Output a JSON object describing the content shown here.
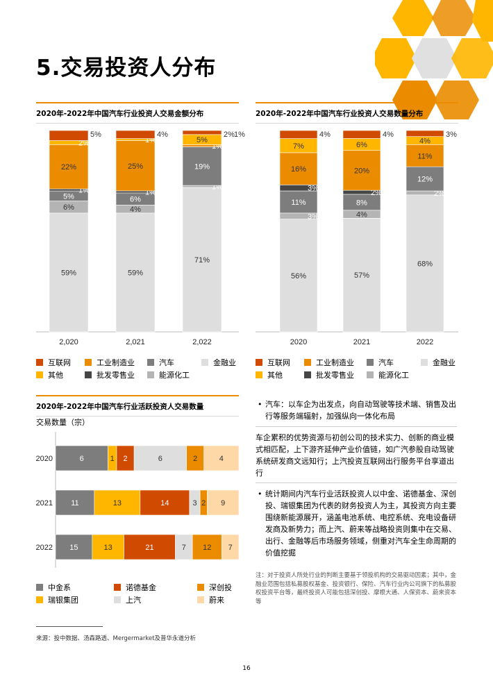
{
  "page": {
    "title": "5.交易投资人分布",
    "page_number": "16",
    "source": "来源：投中数据、汤森路透、Mergermarket及普华永道分析",
    "note": "注：对于投资人所处行业的判断主要基于领投机构的交易驱动因素；其中，金融业范围包括私募股权基金、投资银行、保险、汽车行业内公司旗下的私募股权投资平台等，最终投资人可能包括深创投、摩根大通、人保资本、蔚来资本等"
  },
  "text_panel": {
    "bullet1": "汽车：以车企为出发点，向自动驾驶等技术端、销售及出行等服务端辐射，加强纵向一体化布局",
    "para1": "车企累积的优势资源与初创公司的技术实力、创新的商业模式相匹配，上下游齐延伸产业价值链，如广汽参股自动驾驶系统研发商文远知行；上汽投资互联网出行服务平台享道出行",
    "bullet2": "统计期间内汽车行业活跃投资人以中金、诺德基金、深创投、瑞银集团为代表的财务投资人为主，其投资方向主要围绕新能源展开，涵盖电池系统、电控系统、充电设备研发商及新势力；而上汽、蔚来等战略投资则集中在交易、出行、金融等后市场服务领域，侧重对汽车全生命周期的价值挖掘",
    "bullet_symbol": "•"
  },
  "legend_sector": [
    {
      "name": "互联网",
      "color": "#d04a02"
    },
    {
      "name": "工业制造业",
      "color": "#eb8c00"
    },
    {
      "name": "汽车",
      "color": "#7d7d7d"
    },
    {
      "name": "金融业",
      "color": "#dedede"
    },
    {
      "name": "其他",
      "color": "#ffb600"
    },
    {
      "name": "批发零售业",
      "color": "#464646"
    },
    {
      "name": "能源化工",
      "color": "#b4b4b4"
    }
  ],
  "legend_investor": [
    {
      "name": "中金系",
      "color": "#7d7d7d"
    },
    {
      "name": "诺德基金",
      "color": "#d04a02"
    },
    {
      "name": "深创投",
      "color": "#eb8c00"
    },
    {
      "name": "瑞银集团",
      "color": "#ffb600"
    },
    {
      "name": "上汽",
      "color": "#dedede"
    },
    {
      "name": "蔚来",
      "color": "#ffd8a8"
    }
  ],
  "chart_data": [
    {
      "type": "bar",
      "stacked": true,
      "title": "2020年-2022年中国汽车行业投资人交易金额分布",
      "categories": [
        "2,020",
        "2,021",
        "2,022"
      ],
      "unit": "%",
      "ylim": [
        0,
        100
      ],
      "series": [
        {
          "name": "金融业",
          "color": "#dedede",
          "values": [
            59,
            59,
            71
          ],
          "label_color": "#333333"
        },
        {
          "name": "能源化工",
          "color": "#b4b4b4",
          "values": [
            6,
            4,
            1
          ],
          "label_color": "#333333"
        },
        {
          "name": "汽车",
          "color": "#7d7d7d",
          "values": [
            5,
            6,
            19
          ],
          "label_color": "#ffffff"
        },
        {
          "name": "批发零售业",
          "color": "#464646",
          "values": [
            1,
            1,
            0
          ],
          "label_color": "#ffffff"
        },
        {
          "name": "工业制造业",
          "color": "#eb8c00",
          "values": [
            22,
            25,
            1
          ],
          "label_color": "#333333"
        },
        {
          "name": "其他",
          "color": "#ffb600",
          "values": [
            2,
            1,
            5
          ],
          "label_color": "#333333"
        },
        {
          "name": "互联网",
          "color": "#d04a02",
          "values": [
            5,
            4,
            2
          ],
          "label_color": "#333333"
        }
      ],
      "extra_labels": [
        {
          "bar": 2,
          "text": "1%"
        }
      ]
    },
    {
      "type": "bar",
      "stacked": true,
      "title": "2020年-2022年中国汽车行业投资人交易数量分布",
      "categories": [
        "2020",
        "2021",
        "2022"
      ],
      "unit": "%",
      "ylim": [
        0,
        100
      ],
      "series": [
        {
          "name": "金融业",
          "color": "#dedede",
          "values": [
            56,
            57,
            68
          ],
          "label_color": "#333333"
        },
        {
          "name": "能源化工",
          "color": "#b4b4b4",
          "values": [
            3,
            4,
            2
          ],
          "label_color": "#333333"
        },
        {
          "name": "汽车",
          "color": "#7d7d7d",
          "values": [
            11,
            8,
            12
          ],
          "label_color": "#ffffff"
        },
        {
          "name": "批发零售业",
          "color": "#464646",
          "values": [
            3,
            2,
            0
          ],
          "label_color": "#ffffff"
        },
        {
          "name": "工业制造业",
          "color": "#eb8c00",
          "values": [
            16,
            20,
            11
          ],
          "label_color": "#333333"
        },
        {
          "name": "其他",
          "color": "#ffb600",
          "values": [
            7,
            6,
            4
          ],
          "label_color": "#333333"
        },
        {
          "name": "互联网",
          "color": "#d04a02",
          "values": [
            4,
            4,
            3
          ],
          "label_color": "#333333"
        }
      ]
    },
    {
      "type": "bar",
      "orientation": "horizontal",
      "stacked": true,
      "title": "2020年-2022年中国汽车行业活跃投资人交易数量",
      "ylabel": "交易数量（宗）",
      "categories": [
        "2020",
        "2021",
        "2022"
      ],
      "series": [
        {
          "name": "中金系",
          "color": "#7d7d7d",
          "values": [
            6,
            11,
            15
          ],
          "label_color": "#ffffff"
        },
        {
          "name": "瑞银集团",
          "color": "#ffb600",
          "values": [
            1,
            13,
            13
          ],
          "label_color": "#333333"
        },
        {
          "name": "诺德基金",
          "color": "#d04a02",
          "values": [
            2,
            14,
            21
          ],
          "label_color": "#ffffff"
        },
        {
          "name": "上汽",
          "color": "#dedede",
          "values": [
            6,
            3,
            7
          ],
          "label_color": "#333333"
        },
        {
          "name": "深创投",
          "color": "#eb8c00",
          "values": [
            2,
            2,
            12
          ],
          "label_color": "#333333"
        },
        {
          "name": "蔚来",
          "color": "#ffd8a8",
          "values": [
            4,
            9,
            7
          ],
          "label_color": "#333333"
        }
      ]
    }
  ]
}
